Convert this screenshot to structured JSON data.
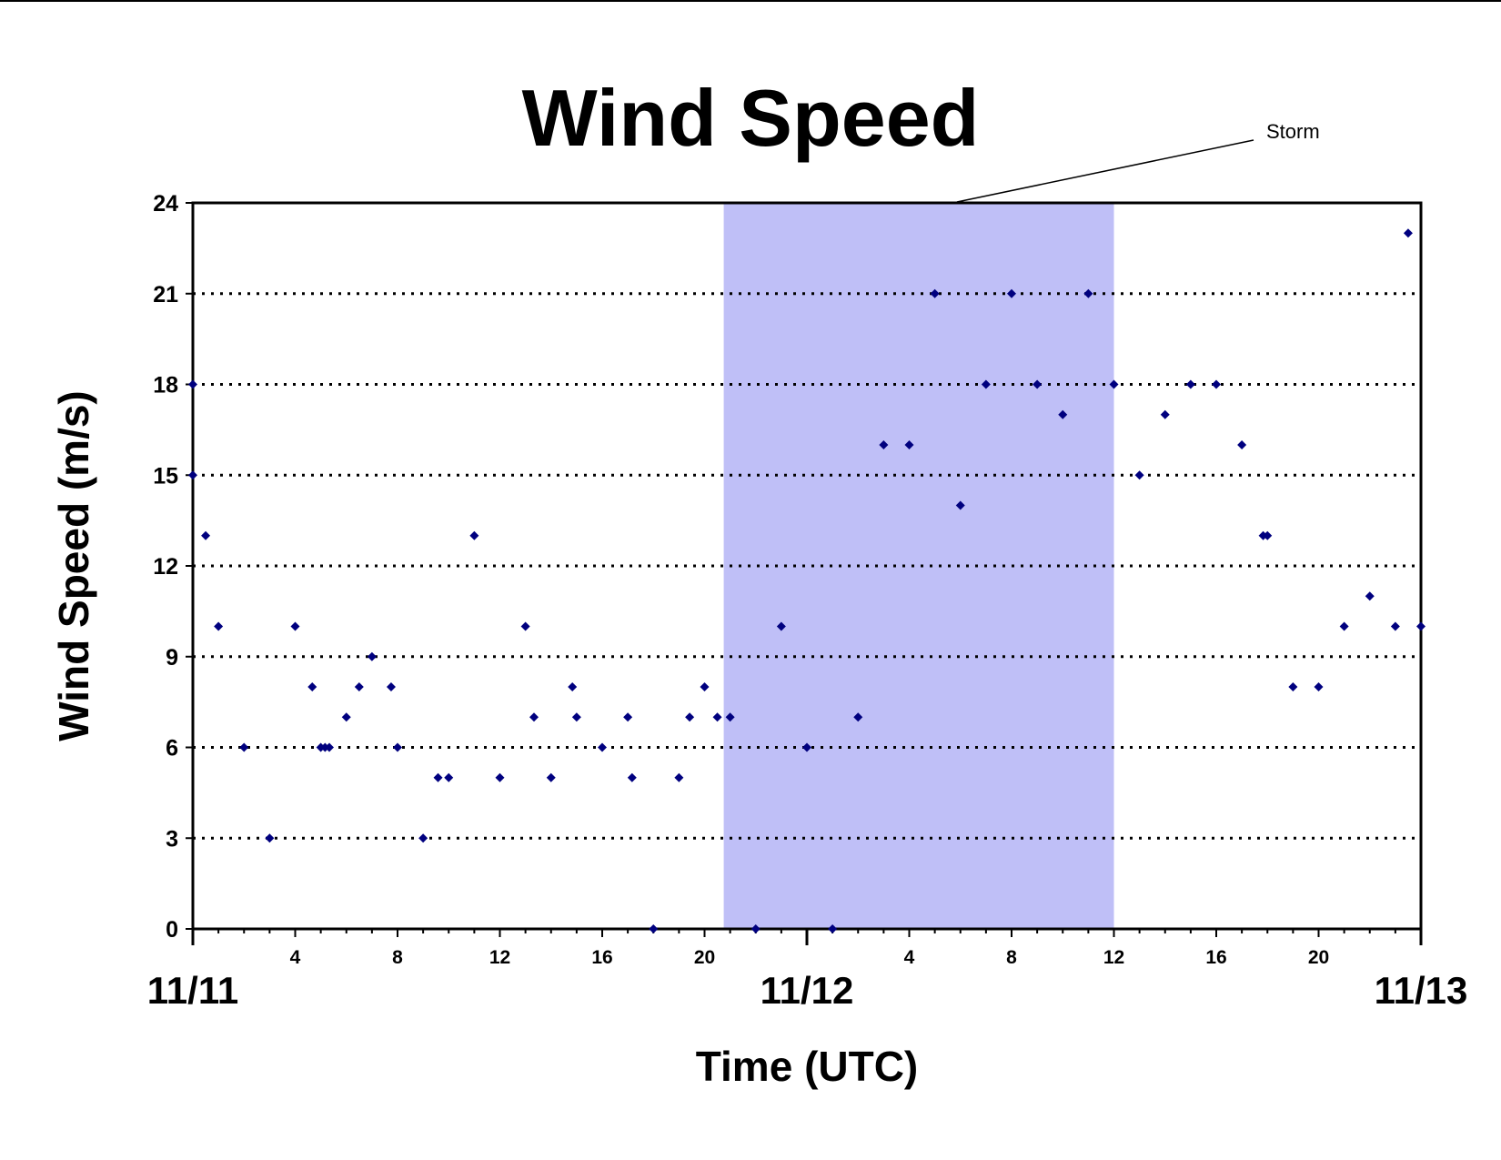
{
  "chart_data": {
    "type": "scatter",
    "title": "Wind Speed",
    "xlabel": "Time (UTC)",
    "ylabel": "Wind Speed (m/s)",
    "xlim": [
      "11/11 00:00",
      "11/13 00:00"
    ],
    "ylim": [
      0,
      24
    ],
    "yticks": [
      0,
      3,
      6,
      9,
      12,
      15,
      18,
      21,
      24
    ],
    "xticks_hour": [
      "4",
      "8",
      "12",
      "16",
      "20",
      "4",
      "8",
      "12",
      "16",
      "20"
    ],
    "day_labels": [
      "11/11",
      "11/12",
      "11/13"
    ],
    "grid": "horizontal dotted",
    "legend": "none",
    "marker_color": "#00007f",
    "shaded_region": {
      "label": "Storm",
      "start": "11/11 20:45",
      "end": "11/12 12:00",
      "color": "#bfbff7"
    },
    "points": [
      {
        "x": "11/11 00:00",
        "y": 18
      },
      {
        "x": "11/11 00:00",
        "y": 15
      },
      {
        "x": "11/11 00:30",
        "y": 13
      },
      {
        "x": "11/11 01:00",
        "y": 10
      },
      {
        "x": "11/11 02:00",
        "y": 6
      },
      {
        "x": "11/11 03:00",
        "y": 3
      },
      {
        "x": "11/11 04:00",
        "y": 10
      },
      {
        "x": "11/11 04:40",
        "y": 8
      },
      {
        "x": "11/11 05:00",
        "y": 6
      },
      {
        "x": "11/11 05:10",
        "y": 6
      },
      {
        "x": "11/11 05:20",
        "y": 6
      },
      {
        "x": "11/11 06:00",
        "y": 7
      },
      {
        "x": "11/11 06:30",
        "y": 8
      },
      {
        "x": "11/11 07:00",
        "y": 9
      },
      {
        "x": "11/11 07:45",
        "y": 8
      },
      {
        "x": "11/11 08:00",
        "y": 6
      },
      {
        "x": "11/11 09:00",
        "y": 3
      },
      {
        "x": "11/11 09:35",
        "y": 5
      },
      {
        "x": "11/11 10:00",
        "y": 5
      },
      {
        "x": "11/11 11:00",
        "y": 13
      },
      {
        "x": "11/11 12:00",
        "y": 5
      },
      {
        "x": "11/11 13:00",
        "y": 10
      },
      {
        "x": "11/11 13:20",
        "y": 7
      },
      {
        "x": "11/11 14:00",
        "y": 5
      },
      {
        "x": "11/11 14:50",
        "y": 8
      },
      {
        "x": "11/11 15:00",
        "y": 7
      },
      {
        "x": "11/11 16:00",
        "y": 6
      },
      {
        "x": "11/11 17:00",
        "y": 7
      },
      {
        "x": "11/11 17:10",
        "y": 5
      },
      {
        "x": "11/11 18:00",
        "y": 0
      },
      {
        "x": "11/11 19:00",
        "y": 5
      },
      {
        "x": "11/11 19:25",
        "y": 7
      },
      {
        "x": "11/11 20:00",
        "y": 8
      },
      {
        "x": "11/11 20:30",
        "y": 7
      },
      {
        "x": "11/11 21:00",
        "y": 7
      },
      {
        "x": "11/11 22:00",
        "y": 0
      },
      {
        "x": "11/11 23:00",
        "y": 10
      },
      {
        "x": "11/12 00:00",
        "y": 6
      },
      {
        "x": "11/12 01:00",
        "y": 0
      },
      {
        "x": "11/12 02:00",
        "y": 7
      },
      {
        "x": "11/12 03:00",
        "y": 16
      },
      {
        "x": "11/12 04:00",
        "y": 16
      },
      {
        "x": "11/12 05:00",
        "y": 21
      },
      {
        "x": "11/12 06:00",
        "y": 14
      },
      {
        "x": "11/12 07:00",
        "y": 18
      },
      {
        "x": "11/12 08:00",
        "y": 21
      },
      {
        "x": "11/12 09:00",
        "y": 18
      },
      {
        "x": "11/12 10:00",
        "y": 17
      },
      {
        "x": "11/12 11:00",
        "y": 21
      },
      {
        "x": "11/12 12:00",
        "y": 18
      },
      {
        "x": "11/12 13:00",
        "y": 15
      },
      {
        "x": "11/12 14:00",
        "y": 17
      },
      {
        "x": "11/12 15:00",
        "y": 18
      },
      {
        "x": "11/12 16:00",
        "y": 18
      },
      {
        "x": "11/12 17:00",
        "y": 16
      },
      {
        "x": "11/12 17:50",
        "y": 13
      },
      {
        "x": "11/12 18:00",
        "y": 13
      },
      {
        "x": "11/12 19:00",
        "y": 8
      },
      {
        "x": "11/12 20:00",
        "y": 8
      },
      {
        "x": "11/12 21:00",
        "y": 10
      },
      {
        "x": "11/12 22:00",
        "y": 11
      },
      {
        "x": "11/12 23:00",
        "y": 10
      },
      {
        "x": "11/12 23:30",
        "y": 23
      },
      {
        "x": "11/13 00:00",
        "y": 10
      }
    ]
  }
}
